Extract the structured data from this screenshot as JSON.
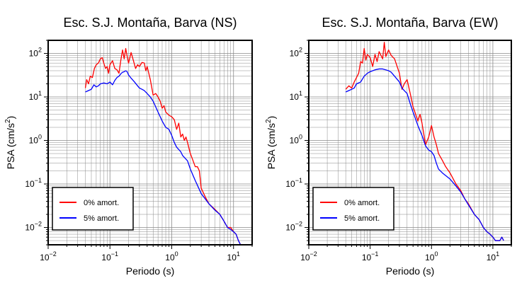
{
  "chart_data": [
    {
      "type": "line",
      "title": "Esc. S.J. Montaña, Barva (NS)",
      "xlabel": "Periodo (s)",
      "ylabel_base": "PSA (cm/s",
      "ylabel_sup": "2",
      "ylabel_end": ")",
      "xscale": "log",
      "yscale": "log",
      "xlim": [
        0.01,
        20
      ],
      "ylim": [
        0.004,
        200
      ],
      "grid": true,
      "legend_position": "bottom-left",
      "xticks": [
        {
          "base": "10",
          "exp": "−2"
        },
        {
          "base": "10",
          "exp": "−1"
        },
        {
          "base": "10",
          "exp": "0"
        },
        {
          "base": "10",
          "exp": "1"
        }
      ],
      "yticks": [
        {
          "base": "10",
          "exp": "−2"
        },
        {
          "base": "10",
          "exp": "−1"
        },
        {
          "base": "10",
          "exp": "0"
        },
        {
          "base": "10",
          "exp": "1"
        },
        {
          "base": "10",
          "exp": "2"
        }
      ],
      "series": [
        {
          "name": "0% amort.",
          "color": "#ff0000",
          "points": [
            [
              0.04,
              16
            ],
            [
              0.042,
              25
            ],
            [
              0.045,
              20
            ],
            [
              0.048,
              30
            ],
            [
              0.052,
              28
            ],
            [
              0.056,
              45
            ],
            [
              0.06,
              55
            ],
            [
              0.065,
              60
            ],
            [
              0.07,
              75
            ],
            [
              0.075,
              80
            ],
            [
              0.08,
              58
            ],
            [
              0.085,
              45
            ],
            [
              0.09,
              50
            ],
            [
              0.095,
              35
            ],
            [
              0.1,
              55
            ],
            [
              0.11,
              68
            ],
            [
              0.12,
              45
            ],
            [
              0.13,
              42
            ],
            [
              0.14,
              35
            ],
            [
              0.15,
              70
            ],
            [
              0.16,
              120
            ],
            [
              0.17,
              75
            ],
            [
              0.18,
              130
            ],
            [
              0.19,
              85
            ],
            [
              0.2,
              60
            ],
            [
              0.22,
              105
            ],
            [
              0.24,
              68
            ],
            [
              0.26,
              45
            ],
            [
              0.28,
              55
            ],
            [
              0.3,
              50
            ],
            [
              0.33,
              62
            ],
            [
              0.36,
              60
            ],
            [
              0.38,
              40
            ],
            [
              0.4,
              50
            ],
            [
              0.45,
              25
            ],
            [
              0.5,
              11
            ],
            [
              0.55,
              12
            ],
            [
              0.6,
              10
            ],
            [
              0.65,
              8
            ],
            [
              0.7,
              5.5
            ],
            [
              0.75,
              6.3
            ],
            [
              0.8,
              4.5
            ],
            [
              0.9,
              3.8
            ],
            [
              1.0,
              3.5
            ],
            [
              1.1,
              3
            ],
            [
              1.2,
              1.8
            ],
            [
              1.3,
              2.5
            ],
            [
              1.4,
              1.2
            ],
            [
              1.5,
              1.4
            ],
            [
              1.6,
              1.0
            ],
            [
              1.7,
              1.2
            ],
            [
              1.8,
              0.9
            ],
            [
              2.0,
              0.5
            ],
            [
              2.2,
              0.35
            ],
            [
              2.4,
              0.25
            ],
            [
              2.6,
              0.25
            ],
            [
              2.8,
              0.2
            ],
            [
              3.0,
              0.08
            ],
            [
              3.5,
              0.05
            ],
            [
              4,
              0.035
            ],
            [
              5,
              0.026
            ],
            [
              6,
              0.02
            ],
            [
              7,
              0.014
            ],
            [
              8,
              0.01
            ],
            [
              9,
              0.01
            ],
            [
              10,
              0.008
            ],
            [
              11,
              0.007
            ],
            [
              12,
              0.005
            ],
            [
              13,
              0.004
            ]
          ]
        },
        {
          "name": "5% amort.",
          "color": "#0000ff",
          "points": [
            [
              0.04,
              13
            ],
            [
              0.045,
              14
            ],
            [
              0.05,
              15
            ],
            [
              0.055,
              19
            ],
            [
              0.06,
              17
            ],
            [
              0.065,
              18
            ],
            [
              0.07,
              20
            ],
            [
              0.08,
              21
            ],
            [
              0.09,
              20
            ],
            [
              0.1,
              22
            ],
            [
              0.11,
              19
            ],
            [
              0.12,
              24
            ],
            [
              0.13,
              28
            ],
            [
              0.14,
              30
            ],
            [
              0.15,
              34
            ],
            [
              0.16,
              37
            ],
            [
              0.17,
              38
            ],
            [
              0.18,
              40
            ],
            [
              0.19,
              38
            ],
            [
              0.2,
              32
            ],
            [
              0.22,
              27
            ],
            [
              0.25,
              22
            ],
            [
              0.28,
              18
            ],
            [
              0.3,
              16
            ],
            [
              0.33,
              15
            ],
            [
              0.36,
              14
            ],
            [
              0.4,
              12
            ],
            [
              0.45,
              10
            ],
            [
              0.5,
              8
            ],
            [
              0.6,
              4.5
            ],
            [
              0.7,
              2.8
            ],
            [
              0.8,
              2
            ],
            [
              0.9,
              1.8
            ],
            [
              1.0,
              1.3
            ],
            [
              1.1,
              0.9
            ],
            [
              1.2,
              0.7
            ],
            [
              1.4,
              0.55
            ],
            [
              1.5,
              0.45
            ],
            [
              1.8,
              0.34
            ],
            [
              2.0,
              0.22
            ],
            [
              2.4,
              0.12
            ],
            [
              3.0,
              0.06
            ],
            [
              3.5,
              0.045
            ],
            [
              4,
              0.035
            ],
            [
              5,
              0.025
            ],
            [
              6,
              0.02
            ],
            [
              7,
              0.014
            ],
            [
              8,
              0.01
            ],
            [
              9,
              0.009
            ],
            [
              10,
              0.008
            ],
            [
              11,
              0.007
            ],
            [
              12,
              0.005
            ],
            [
              13,
              0.004
            ]
          ]
        }
      ]
    },
    {
      "type": "line",
      "title": "Esc. S.J. Montaña, Barva (EW)",
      "xlabel": "Periodo (s)",
      "ylabel_base": "PSA (cm/s",
      "ylabel_sup": "2",
      "ylabel_end": ")",
      "xscale": "log",
      "yscale": "log",
      "xlim": [
        0.01,
        20
      ],
      "ylim": [
        0.004,
        200
      ],
      "grid": true,
      "legend_position": "bottom-left",
      "xticks": [
        {
          "base": "10",
          "exp": "−2"
        },
        {
          "base": "10",
          "exp": "−1"
        },
        {
          "base": "10",
          "exp": "0"
        },
        {
          "base": "10",
          "exp": "1"
        }
      ],
      "yticks": [
        {
          "base": "10",
          "exp": "−2"
        },
        {
          "base": "10",
          "exp": "−1"
        },
        {
          "base": "10",
          "exp": "0"
        },
        {
          "base": "10",
          "exp": "1"
        },
        {
          "base": "10",
          "exp": "2"
        }
      ],
      "series": [
        {
          "name": "0% amort.",
          "color": "#ff0000",
          "points": [
            [
              0.04,
              15
            ],
            [
              0.045,
              18
            ],
            [
              0.05,
              16
            ],
            [
              0.055,
              22
            ],
            [
              0.06,
              28
            ],
            [
              0.065,
              35
            ],
            [
              0.07,
              65
            ],
            [
              0.075,
              60
            ],
            [
              0.08,
              130
            ],
            [
              0.085,
              70
            ],
            [
              0.09,
              95
            ],
            [
              0.1,
              80
            ],
            [
              0.11,
              50
            ],
            [
              0.12,
              95
            ],
            [
              0.13,
              65
            ],
            [
              0.14,
              110
            ],
            [
              0.15,
              90
            ],
            [
              0.16,
              75
            ],
            [
              0.17,
              180
            ],
            [
              0.18,
              85
            ],
            [
              0.2,
              120
            ],
            [
              0.22,
              90
            ],
            [
              0.25,
              75
            ],
            [
              0.3,
              35
            ],
            [
              0.33,
              15
            ],
            [
              0.36,
              20
            ],
            [
              0.4,
              25
            ],
            [
              0.45,
              12
            ],
            [
              0.5,
              6
            ],
            [
              0.6,
              2.8
            ],
            [
              0.65,
              4
            ],
            [
              0.7,
              2.5
            ],
            [
              0.8,
              0.8
            ],
            [
              0.9,
              1.2
            ],
            [
              1.0,
              2.2
            ],
            [
              1.1,
              1.2
            ],
            [
              1.2,
              0.8
            ],
            [
              1.3,
              0.5
            ],
            [
              1.5,
              0.35
            ],
            [
              1.7,
              0.25
            ],
            [
              2.0,
              0.18
            ],
            [
              2.5,
              0.1
            ],
            [
              3.0,
              0.07
            ],
            [
              3.5,
              0.045
            ],
            [
              4,
              0.035
            ],
            [
              5,
              0.02
            ],
            [
              6,
              0.015
            ],
            [
              7,
              0.01
            ],
            [
              8,
              0.008
            ],
            [
              9,
              0.007
            ],
            [
              10,
              0.006
            ],
            [
              11,
              0.005
            ],
            [
              12,
              0.005
            ],
            [
              13,
              0.005
            ],
            [
              14,
              0.006
            ],
            [
              15,
              0.005
            ]
          ]
        },
        {
          "name": "5% amort.",
          "color": "#0000ff",
          "points": [
            [
              0.04,
              13
            ],
            [
              0.045,
              14
            ],
            [
              0.05,
              15
            ],
            [
              0.055,
              16
            ],
            [
              0.06,
              20
            ],
            [
              0.07,
              22
            ],
            [
              0.08,
              30
            ],
            [
              0.09,
              35
            ],
            [
              0.1,
              38
            ],
            [
              0.11,
              40
            ],
            [
              0.12,
              42
            ],
            [
              0.14,
              44
            ],
            [
              0.16,
              44
            ],
            [
              0.18,
              42
            ],
            [
              0.2,
              40
            ],
            [
              0.22,
              37
            ],
            [
              0.25,
              30
            ],
            [
              0.3,
              22
            ],
            [
              0.33,
              16
            ],
            [
              0.36,
              14
            ],
            [
              0.4,
              12
            ],
            [
              0.45,
              7
            ],
            [
              0.5,
              4.5
            ],
            [
              0.6,
              2.2
            ],
            [
              0.7,
              1.3
            ],
            [
              0.8,
              0.75
            ],
            [
              0.9,
              0.6
            ],
            [
              1.0,
              0.55
            ],
            [
              1.1,
              0.45
            ],
            [
              1.2,
              0.3
            ],
            [
              1.3,
              0.22
            ],
            [
              1.5,
              0.18
            ],
            [
              2.0,
              0.13
            ],
            [
              2.5,
              0.09
            ],
            [
              3.0,
              0.065
            ],
            [
              3.5,
              0.045
            ],
            [
              4,
              0.033
            ],
            [
              5,
              0.02
            ],
            [
              6,
              0.015
            ],
            [
              7,
              0.01
            ],
            [
              8,
              0.008
            ],
            [
              9,
              0.007
            ],
            [
              10,
              0.006
            ],
            [
              11,
              0.005
            ],
            [
              12,
              0.005
            ],
            [
              13,
              0.005
            ],
            [
              14,
              0.006
            ],
            [
              15,
              0.005
            ]
          ]
        }
      ]
    }
  ]
}
